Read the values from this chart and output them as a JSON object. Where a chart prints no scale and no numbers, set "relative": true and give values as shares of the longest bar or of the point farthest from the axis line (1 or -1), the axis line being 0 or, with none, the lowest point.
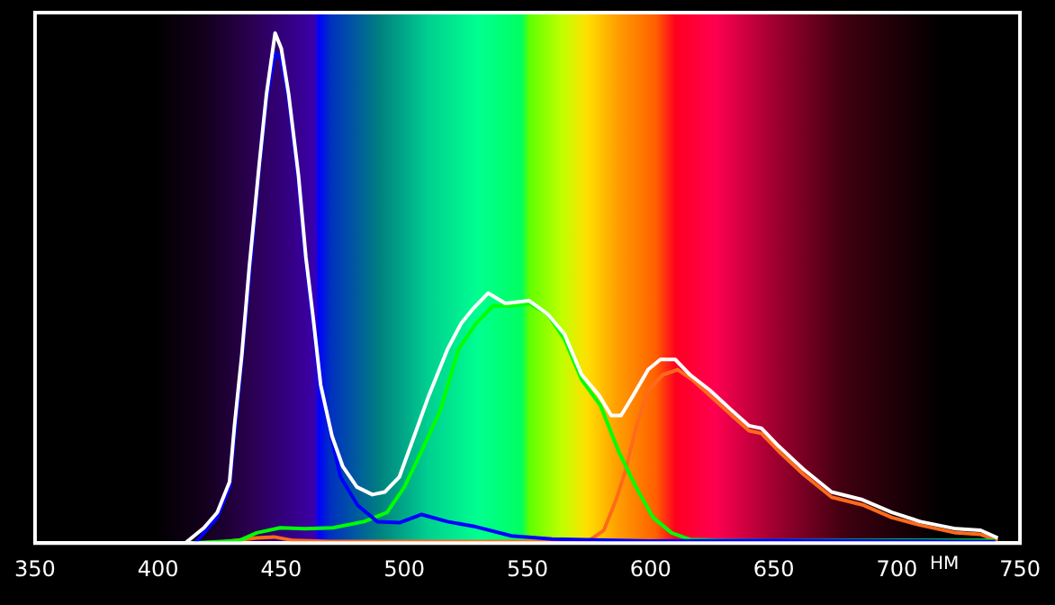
{
  "chart_data": {
    "type": "line",
    "relative": true,
    "xlabel": "НМ",
    "xlim": [
      350,
      750
    ],
    "xticks": [
      350,
      400,
      450,
      500,
      550,
      600,
      650,
      700,
      750
    ],
    "tick_labels": "x",
    "legend": false,
    "grid": false,
    "marker": "none",
    "line_style": "solid",
    "series": [
      {
        "color": "#ffffff",
        "x": [
          411,
          418.6,
          424,
          429,
          431,
          434,
          437,
          441,
          444,
          447.5,
          450,
          453,
          457,
          460,
          463,
          466,
          470.6,
          475,
          480.7,
          487,
          492,
          498,
          504,
          510,
          517.5,
          523,
          528,
          534,
          541,
          550.7,
          558,
          565,
          572,
          579,
          584,
          588,
          593,
          599,
          604,
          610,
          616,
          624,
          633,
          640,
          645,
          652,
          662,
          673.5,
          686,
          698,
          709.6,
          724,
          734,
          741
        ],
        "values": [
          0,
          0.03,
          0.06,
          0.12,
          0.23,
          0.37,
          0.54,
          0.74,
          0.88,
          1,
          0.97,
          0.88,
          0.72,
          0.56,
          0.44,
          0.31,
          0.21,
          0.15,
          0.11,
          0.095,
          0.1,
          0.13,
          0.21,
          0.29,
          0.38,
          0.43,
          0.46,
          0.49,
          0.47,
          0.475,
          0.45,
          0.41,
          0.33,
          0.29,
          0.25,
          0.25,
          0.29,
          0.34,
          0.36,
          0.36,
          0.33,
          0.3,
          0.26,
          0.23,
          0.225,
          0.19,
          0.145,
          0.1,
          0.085,
          0.06,
          0.042,
          0.028,
          0.025,
          0.01
        ]
      },
      {
        "color": "#0000ff",
        "x": [
          415,
          424,
          429,
          434,
          441,
          444,
          447.5,
          450,
          453,
          457,
          460,
          463,
          466,
          474,
          481,
          489,
          498,
          507,
          517.5,
          529,
          543.5,
          560,
          600,
          650,
          700,
          740
        ],
        "values": [
          0,
          0.05,
          0.11,
          0.36,
          0.73,
          0.87,
          0.96,
          0.95,
          0.87,
          0.71,
          0.55,
          0.43,
          0.3,
          0.13,
          0.074,
          0.042,
          0.04,
          0.056,
          0.042,
          0.032,
          0.014,
          0.008,
          0.004,
          0.005,
          0.004,
          0.003
        ]
      },
      {
        "color": "#00ff00",
        "x": [
          413.5,
          433,
          440,
          449.6,
          459.7,
          471,
          483.6,
          493,
          500,
          507,
          514.6,
          522,
          529,
          536,
          543.5,
          550.7,
          558,
          565,
          572,
          579.6,
          587,
          594,
          601,
          608.5,
          616,
          630,
          740
        ],
        "values": [
          0,
          0.005,
          0.02,
          0.03,
          0.028,
          0.03,
          0.042,
          0.06,
          0.11,
          0.18,
          0.26,
          0.38,
          0.43,
          0.465,
          0.465,
          0.47,
          0.45,
          0.4,
          0.32,
          0.27,
          0.18,
          0.11,
          0.05,
          0.02,
          0.007,
          0.005,
          0.005
        ]
      },
      {
        "color": "#ff6a1a",
        "x": [
          423,
          440,
          447,
          455,
          470,
          560,
          575,
          581,
          586,
          590,
          594,
          599,
          605,
          611,
          617,
          624,
          633,
          640,
          645,
          652,
          662,
          673.5,
          686,
          698,
          709.6,
          724,
          734,
          741
        ],
        "values": [
          0,
          0.01,
          0.012,
          0.005,
          0.003,
          0.003,
          0.005,
          0.025,
          0.085,
          0.145,
          0.225,
          0.3,
          0.33,
          0.34,
          0.32,
          0.29,
          0.25,
          0.22,
          0.215,
          0.18,
          0.135,
          0.09,
          0.075,
          0.05,
          0.035,
          0.02,
          0.017,
          0.005
        ]
      }
    ]
  }
}
